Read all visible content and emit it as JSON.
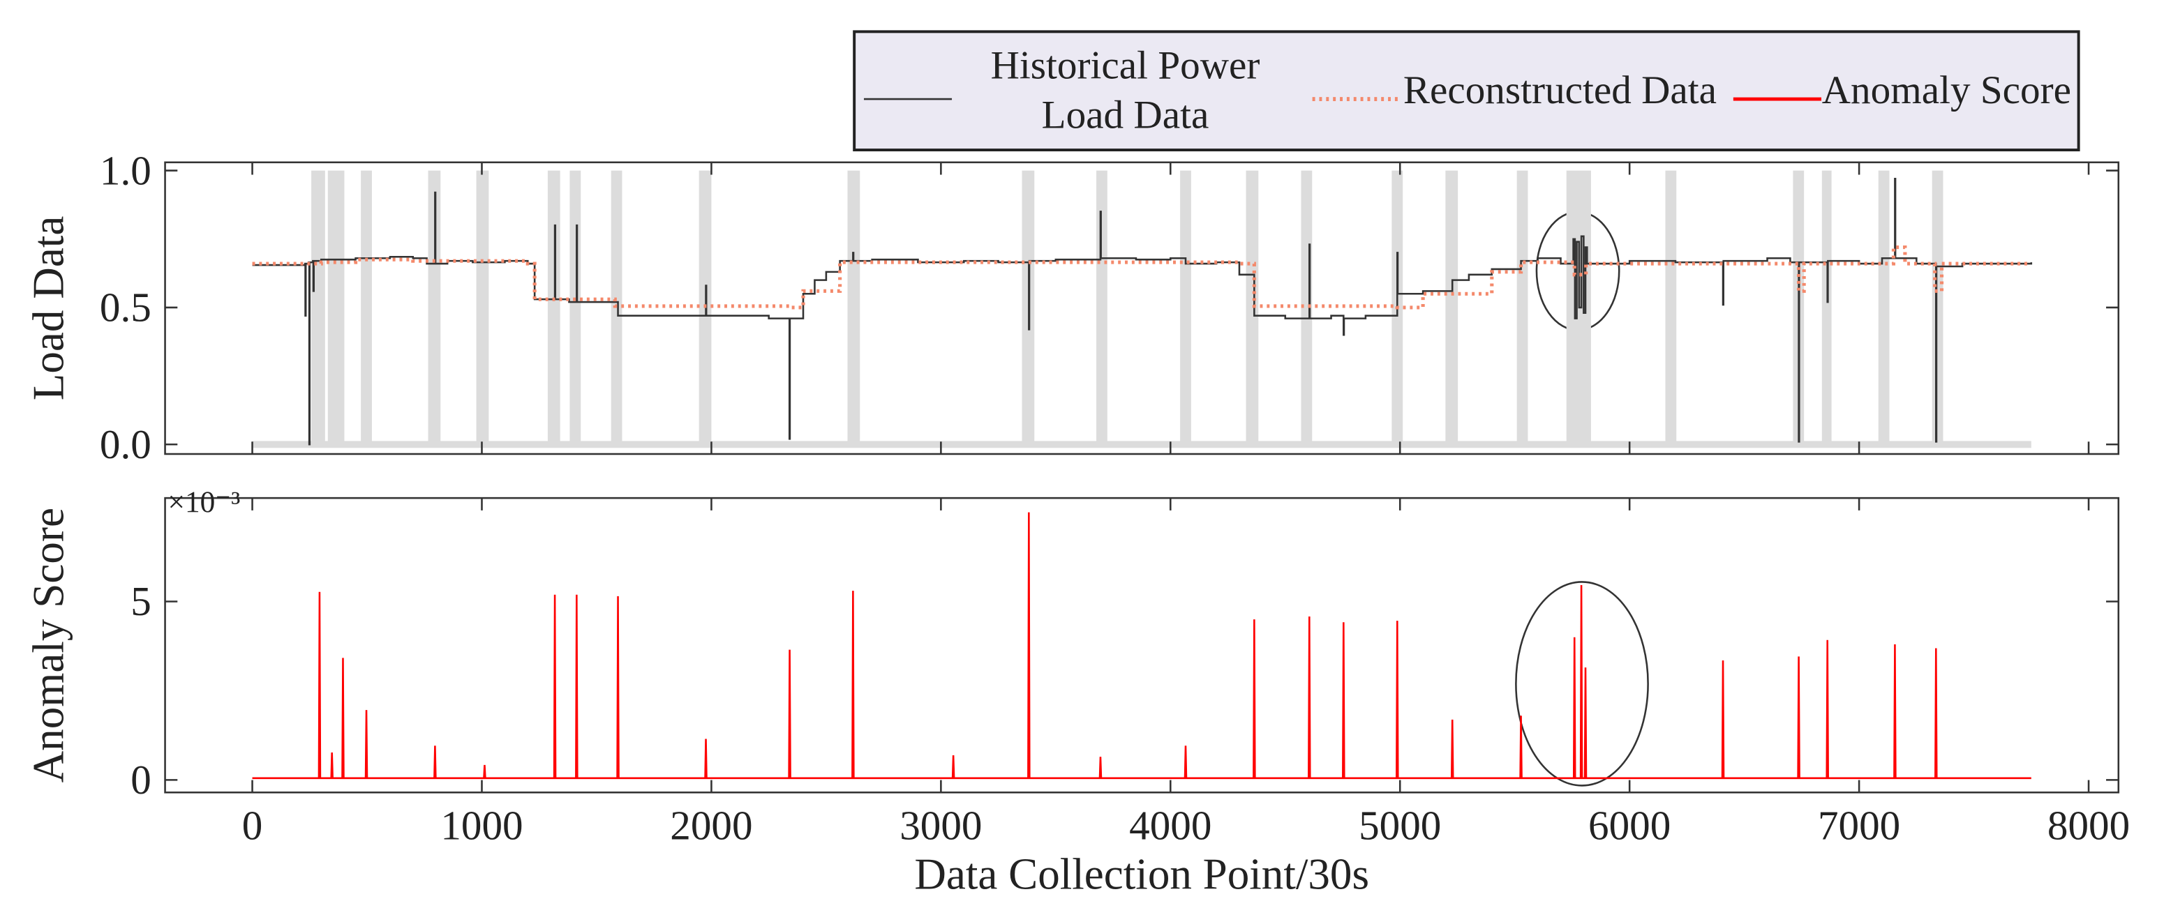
{
  "chart_data": [
    {
      "type": "line",
      "ylabel": "Load Data",
      "drawstyle": "steps-post",
      "xlim": [
        -380,
        8130
      ],
      "ylim": [
        -0.035,
        1.03
      ],
      "xticks": [
        0,
        1000,
        2000,
        3000,
        4000,
        5000,
        6000,
        7000,
        8000
      ],
      "yticks": [
        {
          "value": 0,
          "label": "0.0"
        },
        0.5,
        {
          "value": 1,
          "label": "1.0"
        }
      ],
      "legend": "top right",
      "highlight_color": "#dcdcdc",
      "highlight_spans": [
        [
          257,
          317
        ],
        [
          329,
          401
        ],
        [
          473,
          521
        ],
        [
          766,
          820
        ],
        [
          976,
          1030
        ],
        [
          1287,
          1341
        ],
        [
          1383,
          1431
        ],
        [
          1563,
          1611
        ],
        [
          1946,
          2000
        ],
        [
          2593,
          2647
        ],
        [
          3353,
          3407
        ],
        [
          3677,
          3725
        ],
        [
          4042,
          4090
        ],
        [
          4329,
          4383
        ],
        [
          4569,
          4617
        ],
        [
          4964,
          5012
        ],
        [
          5198,
          5252
        ],
        [
          5509,
          5557
        ],
        [
          5725,
          5832
        ],
        [
          6156,
          6204
        ],
        [
          6712,
          6760
        ],
        [
          6838,
          6880
        ],
        [
          7084,
          7132
        ],
        [
          7318,
          7366
        ]
      ],
      "series": [
        {
          "name": "Historical Power Load Data",
          "color": "#333333",
          "linestyle": "solid",
          "x": [
            0,
            230,
            231,
            233,
            246,
            248,
            250,
            264,
            266,
            268,
            300,
            450,
            600,
            700,
            760,
            796,
            798,
            850,
            960,
            1100,
            1200,
            1230,
            1318,
            1320,
            1380,
            1413,
            1415,
            1560,
            1593,
            1976,
            1978,
            2100,
            2250,
            2340,
            2342,
            2400,
            2450,
            2500,
            2560,
            2617,
            2619,
            2700,
            2900,
            3100,
            3250,
            3383,
            3385,
            3500,
            3695,
            3697,
            3850,
            4000,
            4066,
            4200,
            4300,
            4365,
            4500,
            4605,
            4607,
            4700,
            4754,
            4756,
            4850,
            4988,
            4990,
            5100,
            5228,
            5300,
            5400,
            5527,
            5600,
            5700,
            5755,
            5762,
            5770,
            5780,
            5790,
            5800,
            5808,
            5815,
            6000,
            6200,
            6407,
            6409,
            6600,
            6700,
            6737,
            6739,
            6862,
            6864,
            7000,
            7100,
            7156,
            7158,
            7250,
            7335,
            7337,
            7450,
            7750
          ],
          "values": [
            0.655,
            0.66,
            0.47,
            0.66,
            0.665,
            0.0,
            0.665,
            0.67,
            0.56,
            0.67,
            0.675,
            0.68,
            0.685,
            0.68,
            0.66,
            0.92,
            0.66,
            0.67,
            0.665,
            0.67,
            0.66,
            0.53,
            0.8,
            0.53,
            0.52,
            0.8,
            0.52,
            0.52,
            0.47,
            0.58,
            0.47,
            0.47,
            0.46,
            0.02,
            0.46,
            0.55,
            0.6,
            0.63,
            0.67,
            0.7,
            0.67,
            0.675,
            0.665,
            0.67,
            0.665,
            0.42,
            0.67,
            0.675,
            0.85,
            0.68,
            0.675,
            0.68,
            0.66,
            0.665,
            0.62,
            0.47,
            0.46,
            0.73,
            0.46,
            0.47,
            0.4,
            0.46,
            0.47,
            0.7,
            0.55,
            0.56,
            0.6,
            0.62,
            0.64,
            0.67,
            0.68,
            0.66,
            0.75,
            0.46,
            0.74,
            0.5,
            0.76,
            0.48,
            0.72,
            0.66,
            0.67,
            0.665,
            0.51,
            0.67,
            0.68,
            0.665,
            0.01,
            0.665,
            0.52,
            0.67,
            0.66,
            0.68,
            0.97,
            0.68,
            0.66,
            0.01,
            0.65,
            0.66,
            0.665
          ]
        },
        {
          "name": "Reconstructed Data",
          "color": "#f4896b",
          "linestyle": "dotted",
          "x": [
            0,
            300,
            450,
            700,
            1200,
            1230,
            1580,
            2340,
            2400,
            2560,
            4300,
            4365,
            4988,
            5100,
            5400,
            5527,
            5760,
            5810,
            6737,
            6760,
            7150,
            7200,
            7330,
            7360,
            7750
          ],
          "values": [
            0.66,
            0.665,
            0.675,
            0.67,
            0.66,
            0.53,
            0.505,
            0.5,
            0.56,
            0.665,
            0.66,
            0.505,
            0.5,
            0.55,
            0.63,
            0.665,
            0.62,
            0.66,
            0.56,
            0.66,
            0.72,
            0.66,
            0.56,
            0.66,
            0.66
          ]
        }
      ]
    },
    {
      "type": "line",
      "ylabel": "Anomaly Score",
      "xlabel": "Data Collection Point/30s",
      "y_multiplier": "×10⁻³",
      "drawstyle": "linear",
      "xlim": [
        -380,
        8130
      ],
      "ylim": [
        -0.35,
        7.9
      ],
      "xticks": [
        0,
        1000,
        2000,
        3000,
        4000,
        5000,
        6000,
        7000,
        8000
      ],
      "yticks": [
        0,
        5
      ],
      "series": [
        {
          "name": "Anomaly Score",
          "color": "#ff0000",
          "linestyle": "solid",
          "x": [
            0,
            290,
            293,
            296,
            344,
            347,
            350,
            392,
            395,
            398,
            494,
            497,
            500,
            793,
            796,
            799,
            1009,
            1012,
            1015,
            1315,
            1318,
            1321,
            1410,
            1413,
            1416,
            1590,
            1593,
            1596,
            1973,
            1976,
            1979,
            2338,
            2341,
            2344,
            2614,
            2617,
            2620,
            3051,
            3054,
            3057,
            3380,
            3383,
            3386,
            3692,
            3695,
            3698,
            4063,
            4066,
            4069,
            4362,
            4365,
            4368,
            4602,
            4605,
            4608,
            4751,
            4754,
            4757,
            4985,
            4988,
            4991,
            5225,
            5228,
            5231,
            5524,
            5527,
            5530,
            5757,
            5760,
            5763,
            5787,
            5790,
            5793,
            5805,
            5808,
            5811,
            6404,
            6407,
            6410,
            6734,
            6737,
            6740,
            6859,
            6862,
            6865,
            7153,
            7156,
            7159,
            7332,
            7335,
            7338,
            7750
          ],
          "values": [
            0.05,
            0.05,
            5.27,
            0.05,
            0.05,
            0.77,
            0.05,
            0.05,
            3.42,
            0.05,
            0.05,
            1.96,
            0.05,
            0.05,
            0.96,
            0.05,
            0.05,
            0.42,
            0.05,
            0.05,
            5.19,
            0.05,
            0.05,
            5.19,
            0.05,
            0.05,
            5.15,
            0.05,
            0.05,
            1.15,
            0.05,
            0.05,
            3.65,
            0.05,
            0.05,
            5.3,
            0.05,
            0.05,
            0.69,
            0.05,
            0.05,
            7.5,
            0.05,
            0.05,
            0.65,
            0.05,
            0.05,
            0.96,
            0.05,
            0.05,
            4.5,
            0.05,
            0.05,
            4.58,
            0.05,
            0.05,
            4.42,
            0.05,
            0.05,
            4.46,
            0.05,
            0.05,
            1.69,
            0.05,
            0.05,
            1.8,
            0.05,
            0.05,
            4.0,
            0.05,
            0.05,
            5.46,
            0.05,
            0.05,
            3.15,
            0.05,
            0.05,
            3.35,
            0.05,
            0.05,
            3.46,
            0.05,
            0.05,
            3.92,
            0.05,
            0.05,
            3.8,
            0.05,
            0.05,
            3.69,
            0.05,
            0.05
          ]
        }
      ]
    }
  ]
}
